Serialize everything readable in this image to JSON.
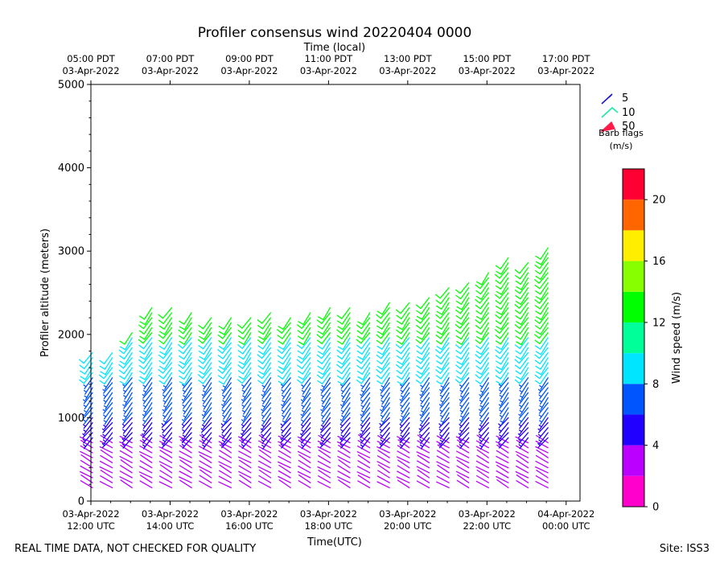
{
  "chart_data": {
    "type": "wind-barb-profile",
    "title": "Profiler consensus wind 20220404 0000",
    "top_axis_label": "Time (local)",
    "xlabel": "Time(UTC)",
    "ylabel": "Profiler altitude (meters)",
    "x_range_hours": [
      12.0,
      24.35
    ],
    "ylim": [
      0,
      5000
    ],
    "yticks": [
      0,
      1000,
      2000,
      3000,
      4000,
      5000
    ],
    "bottom_ticks": [
      {
        "hour": 12,
        "line1": "03-Apr-2022",
        "line2": "12:00 UTC"
      },
      {
        "hour": 14,
        "line1": "03-Apr-2022",
        "line2": "14:00 UTC"
      },
      {
        "hour": 16,
        "line1": "03-Apr-2022",
        "line2": "16:00 UTC"
      },
      {
        "hour": 18,
        "line1": "03-Apr-2022",
        "line2": "18:00 UTC"
      },
      {
        "hour": 20,
        "line1": "03-Apr-2022",
        "line2": "20:00 UTC"
      },
      {
        "hour": 22,
        "line1": "03-Apr-2022",
        "line2": "22:00 UTC"
      },
      {
        "hour": 24,
        "line1": "04-Apr-2022",
        "line2": "00:00 UTC"
      }
    ],
    "top_ticks": [
      {
        "hour": 12,
        "line1": "05:00 PDT",
        "line2": "03-Apr-2022"
      },
      {
        "hour": 14,
        "line1": "07:00 PDT",
        "line2": "03-Apr-2022"
      },
      {
        "hour": 16,
        "line1": "09:00 PDT",
        "line2": "03-Apr-2022"
      },
      {
        "hour": 18,
        "line1": "11:00 PDT",
        "line2": "03-Apr-2022"
      },
      {
        "hour": 20,
        "line1": "13:00 PDT",
        "line2": "03-Apr-2022"
      },
      {
        "hour": 22,
        "line1": "15:00 PDT",
        "line2": "03-Apr-2022"
      },
      {
        "hour": 24,
        "line1": "17:00 PDT",
        "line2": "03-Apr-2022"
      }
    ],
    "profile_hours": [
      12.0,
      12.5,
      13.0,
      13.5,
      14.0,
      14.5,
      15.0,
      15.5,
      16.0,
      16.5,
      17.0,
      17.5,
      18.0,
      18.5,
      19.0,
      19.5,
      20.0,
      20.5,
      21.0,
      21.5,
      22.0,
      22.5,
      23.0,
      23.5
    ],
    "profile_tops_m": [
      1800,
      1780,
      2070,
      2370,
      2370,
      2280,
      2220,
      2250,
      2250,
      2300,
      2240,
      2300,
      2370,
      2360,
      2280,
      2380,
      2400,
      2480,
      2560,
      2620,
      2780,
      2920,
      2900,
      3040
    ],
    "barb_spacing_m": 60,
    "barb_bands": [
      {
        "max_altitude_m": 700,
        "speed_ms": 3,
        "direction_deg": 300
      },
      {
        "max_altitude_m": 1000,
        "speed_ms": 5,
        "direction_deg": 220
      },
      {
        "max_altitude_m": 1500,
        "speed_ms": 7,
        "direction_deg": 215
      },
      {
        "max_altitude_m": 2000,
        "speed_ms": 9,
        "direction_deg": 215
      },
      {
        "max_altitude_m": 3100,
        "speed_ms": 13,
        "direction_deg": 215
      }
    ],
    "legend_title": "Barb flags",
    "legend_units": "(m/s)",
    "legend_entries": [
      {
        "label": "5",
        "color": "#1a12cc"
      },
      {
        "label": "10",
        "color": "#1ee8a8"
      },
      {
        "label": "50",
        "color": "#ff1a4a"
      }
    ],
    "colorbar_label": "Wind speed (m/s)",
    "colorbar_range": [
      0,
      22
    ],
    "colorbar_ticks": [
      0,
      4,
      8,
      12,
      16,
      20
    ],
    "colorbar_colors": [
      "#ff00cc",
      "#bb00ff",
      "#2200ff",
      "#0055ff",
      "#00e5ff",
      "#00ff99",
      "#00ff00",
      "#88ff00",
      "#ffee00",
      "#ff6600",
      "#ff0033"
    ]
  },
  "footer": {
    "left_note": "REAL TIME DATA, NOT CHECKED FOR QUALITY",
    "site": "Site: ISS3"
  }
}
